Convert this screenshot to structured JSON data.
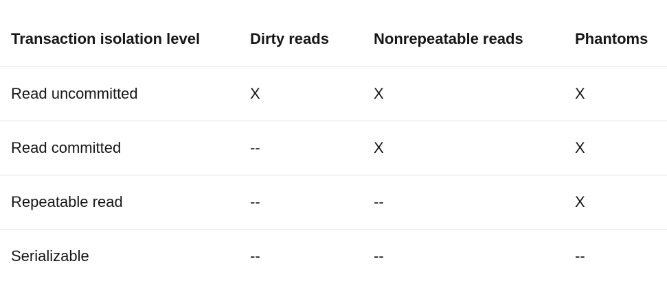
{
  "table": {
    "headers": [
      "Transaction isolation level",
      "Dirty reads",
      "Nonrepeatable reads",
      "Phantoms"
    ],
    "rows": [
      [
        "Read uncommitted",
        "X",
        "X",
        "X"
      ],
      [
        "Read committed",
        "--",
        "X",
        "X"
      ],
      [
        "Repeatable read",
        "--",
        "--",
        "X"
      ],
      [
        "Serializable",
        "--",
        "--",
        "--"
      ]
    ]
  }
}
